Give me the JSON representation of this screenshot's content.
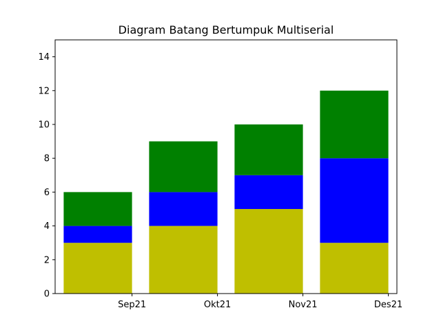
{
  "chart_data": {
    "type": "bar",
    "stacked": true,
    "title": "Diagram Batang Bertumpuk Multiserial",
    "xlabel": "",
    "ylabel": "",
    "categories": [
      "Sep21",
      "Okt21",
      "Nov21",
      "Des21"
    ],
    "series": [
      {
        "values": [
          3,
          4,
          5,
          3
        ],
        "color": "#bfbf00"
      },
      {
        "values": [
          1,
          2,
          2,
          5
        ],
        "color": "#0000ff"
      },
      {
        "values": [
          2,
          3,
          3,
          4
        ],
        "color": "#008000"
      }
    ],
    "ylim": [
      0,
      15
    ],
    "yticks": [
      0,
      2,
      4,
      6,
      8,
      10,
      12,
      14
    ],
    "xlim": [
      -0.9,
      3.1
    ],
    "xticks": [
      0,
      1,
      2,
      3
    ],
    "bar_centers": [
      -0.4,
      0.6,
      1.6,
      2.6
    ],
    "bar_width": 0.8,
    "grid": false,
    "legend": "none"
  }
}
